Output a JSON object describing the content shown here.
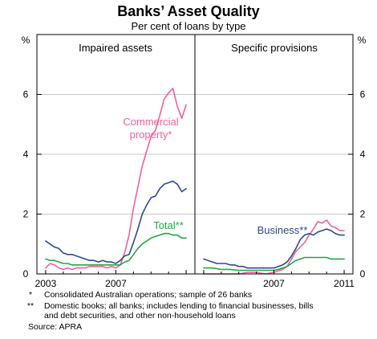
{
  "chart_data": {
    "type": "line",
    "title": "Banks’ Asset Quality",
    "subtitle": "Per cent of loans by type",
    "unit": "%",
    "ylim": [
      0,
      8
    ],
    "yticks": [
      0,
      2,
      4,
      6
    ],
    "xlim": [
      2002.5,
      2011.5
    ],
    "xticks": [
      2003,
      2007,
      2011
    ],
    "grid": true,
    "colors": {
      "commercial": "#f0609e",
      "business": "#2c4a8c",
      "total": "#24a646",
      "frame": "#000000",
      "grid": "#c8c8c8"
    },
    "panels": [
      {
        "title": "Impaired assets",
        "series": [
          {
            "name": "Commercial property*",
            "color_key": "commercial",
            "x": [
              2003.0,
              2003.25,
              2003.5,
              2003.75,
              2004.0,
              2004.25,
              2004.5,
              2004.75,
              2005.0,
              2005.25,
              2005.5,
              2005.75,
              2006.0,
              2006.25,
              2006.5,
              2006.75,
              2007.0,
              2007.25,
              2007.5,
              2007.75,
              2008.0,
              2008.25,
              2008.5,
              2008.75,
              2009.0,
              2009.25,
              2009.5,
              2009.75,
              2010.0,
              2010.25,
              2010.5,
              2010.75,
              2011.0
            ],
            "y": [
              0.2,
              0.35,
              0.3,
              0.2,
              0.15,
              0.2,
              0.15,
              0.2,
              0.2,
              0.2,
              0.25,
              0.25,
              0.25,
              0.25,
              0.2,
              0.25,
              0.2,
              0.3,
              0.7,
              1.3,
              2.2,
              2.9,
              3.6,
              4.1,
              4.6,
              4.8,
              5.3,
              5.85,
              6.05,
              6.2,
              5.6,
              5.2,
              5.65
            ]
          },
          {
            "name": "",
            "color_key": "business",
            "x": [
              2003.0,
              2003.25,
              2003.5,
              2003.75,
              2004.0,
              2004.25,
              2004.5,
              2004.75,
              2005.0,
              2005.25,
              2005.5,
              2005.75,
              2006.0,
              2006.25,
              2006.5,
              2006.75,
              2007.0,
              2007.25,
              2007.5,
              2007.75,
              2008.0,
              2008.25,
              2008.5,
              2008.75,
              2009.0,
              2009.25,
              2009.5,
              2009.75,
              2010.0,
              2010.25,
              2010.5,
              2010.75,
              2011.0
            ],
            "y": [
              1.1,
              1.0,
              0.9,
              0.85,
              0.7,
              0.65,
              0.65,
              0.6,
              0.55,
              0.5,
              0.45,
              0.45,
              0.4,
              0.45,
              0.4,
              0.4,
              0.35,
              0.45,
              0.6,
              0.65,
              1.05,
              1.5,
              2.0,
              2.3,
              2.55,
              2.6,
              2.85,
              3.0,
              3.05,
              3.1,
              3.0,
              2.75,
              2.85
            ]
          },
          {
            "name": "Total**",
            "color_key": "total",
            "x": [
              2003.0,
              2003.25,
              2003.5,
              2003.75,
              2004.0,
              2004.25,
              2004.5,
              2004.75,
              2005.0,
              2005.25,
              2005.5,
              2005.75,
              2006.0,
              2006.25,
              2006.5,
              2006.75,
              2007.0,
              2007.25,
              2007.5,
              2007.75,
              2008.0,
              2008.25,
              2008.5,
              2008.75,
              2009.0,
              2009.25,
              2009.5,
              2009.75,
              2010.0,
              2010.25,
              2010.5,
              2010.75,
              2011.0
            ],
            "y": [
              0.5,
              0.45,
              0.45,
              0.4,
              0.35,
              0.35,
              0.3,
              0.3,
              0.3,
              0.3,
              0.3,
              0.3,
              0.3,
              0.3,
              0.3,
              0.3,
              0.3,
              0.3,
              0.4,
              0.45,
              0.65,
              0.85,
              1.0,
              1.1,
              1.2,
              1.25,
              1.3,
              1.35,
              1.35,
              1.3,
              1.3,
              1.2,
              1.2
            ]
          }
        ],
        "annotations": [
          {
            "text": "Commercial",
            "color_key": "commercial"
          },
          {
            "text": "property*",
            "color_key": "commercial"
          },
          {
            "text": "Total**",
            "color_key": "total"
          }
        ]
      },
      {
        "title": "Specific provisions",
        "series": [
          {
            "name": "",
            "color_key": "commercial",
            "x": [
              2003.0,
              2003.5,
              2004.0,
              2004.5,
              2005.0,
              2005.5,
              2006.0,
              2006.5,
              2007.0,
              2007.25,
              2007.5,
              2007.75,
              2008.0,
              2008.25,
              2008.5,
              2008.75,
              2009.0,
              2009.25,
              2009.5,
              2009.75,
              2010.0,
              2010.25,
              2010.5,
              2010.75,
              2011.0
            ],
            "y": [
              0.0,
              0.0,
              0.0,
              0.0,
              0.0,
              0.05,
              0.05,
              0.0,
              0.05,
              0.1,
              0.15,
              0.25,
              0.5,
              0.75,
              0.9,
              1.05,
              1.3,
              1.5,
              1.75,
              1.7,
              1.8,
              1.6,
              1.55,
              1.45,
              1.45
            ]
          },
          {
            "name": "Business**",
            "color_key": "business",
            "x": [
              2003.0,
              2003.25,
              2003.5,
              2003.75,
              2004.0,
              2004.25,
              2004.5,
              2004.75,
              2005.0,
              2005.25,
              2005.5,
              2005.75,
              2006.0,
              2006.25,
              2006.5,
              2006.75,
              2007.0,
              2007.25,
              2007.5,
              2007.75,
              2008.0,
              2008.25,
              2008.5,
              2008.75,
              2009.0,
              2009.25,
              2009.5,
              2009.75,
              2010.0,
              2010.25,
              2010.5,
              2010.75,
              2011.0
            ],
            "y": [
              0.5,
              0.45,
              0.4,
              0.35,
              0.35,
              0.35,
              0.3,
              0.3,
              0.25,
              0.25,
              0.2,
              0.2,
              0.2,
              0.2,
              0.2,
              0.2,
              0.2,
              0.25,
              0.3,
              0.4,
              0.6,
              0.85,
              1.15,
              1.3,
              1.35,
              1.3,
              1.4,
              1.45,
              1.5,
              1.45,
              1.35,
              1.3,
              1.3
            ]
          },
          {
            "name": "",
            "color_key": "total",
            "x": [
              2003.0,
              2003.5,
              2004.0,
              2004.5,
              2005.0,
              2005.5,
              2006.0,
              2006.5,
              2007.0,
              2007.25,
              2007.5,
              2007.75,
              2008.0,
              2008.25,
              2008.5,
              2008.75,
              2009.0,
              2009.25,
              2009.5,
              2009.75,
              2010.0,
              2010.25,
              2010.5,
              2010.75,
              2011.0
            ],
            "y": [
              0.2,
              0.2,
              0.15,
              0.15,
              0.12,
              0.12,
              0.12,
              0.12,
              0.12,
              0.15,
              0.2,
              0.25,
              0.35,
              0.45,
              0.5,
              0.55,
              0.55,
              0.55,
              0.55,
              0.55,
              0.55,
              0.5,
              0.5,
              0.5,
              0.5
            ]
          }
        ],
        "annotations": [
          {
            "text": "Business**",
            "color_key": "business"
          }
        ]
      }
    ]
  },
  "footnotes": [
    {
      "mark": "*",
      "text": "Consolidated Australian operations; sample of 26 banks"
    },
    {
      "mark": "**",
      "text": "Domestic books; all banks; includes lending to financial businesses, bills"
    },
    {
      "mark": "",
      "text": "and debt securities, and other non-household loans"
    }
  ],
  "source": "Source: APRA"
}
